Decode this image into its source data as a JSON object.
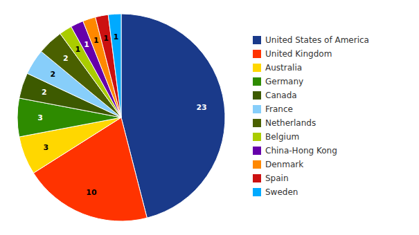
{
  "chart_data": {
    "type": "pie",
    "categories": [
      "United States of America",
      "United Kingdom",
      "Australia",
      "Germany",
      "Canada",
      "France",
      "Netherlands",
      "Belgium",
      "China-Hong Kong",
      "Denmark",
      "Spain",
      "Sweden"
    ],
    "values": [
      23,
      10,
      3,
      3,
      2,
      2,
      2,
      1,
      1,
      1,
      1,
      1
    ],
    "colors": [
      "#1a3a8a",
      "#ff3300",
      "#ffd700",
      "#2e8b00",
      "#3d5a00",
      "#87cefa",
      "#4a6000",
      "#aacc00",
      "#6600aa",
      "#ff8800",
      "#cc1111",
      "#00aaff"
    ],
    "data_labels": true,
    "legend": "right"
  }
}
